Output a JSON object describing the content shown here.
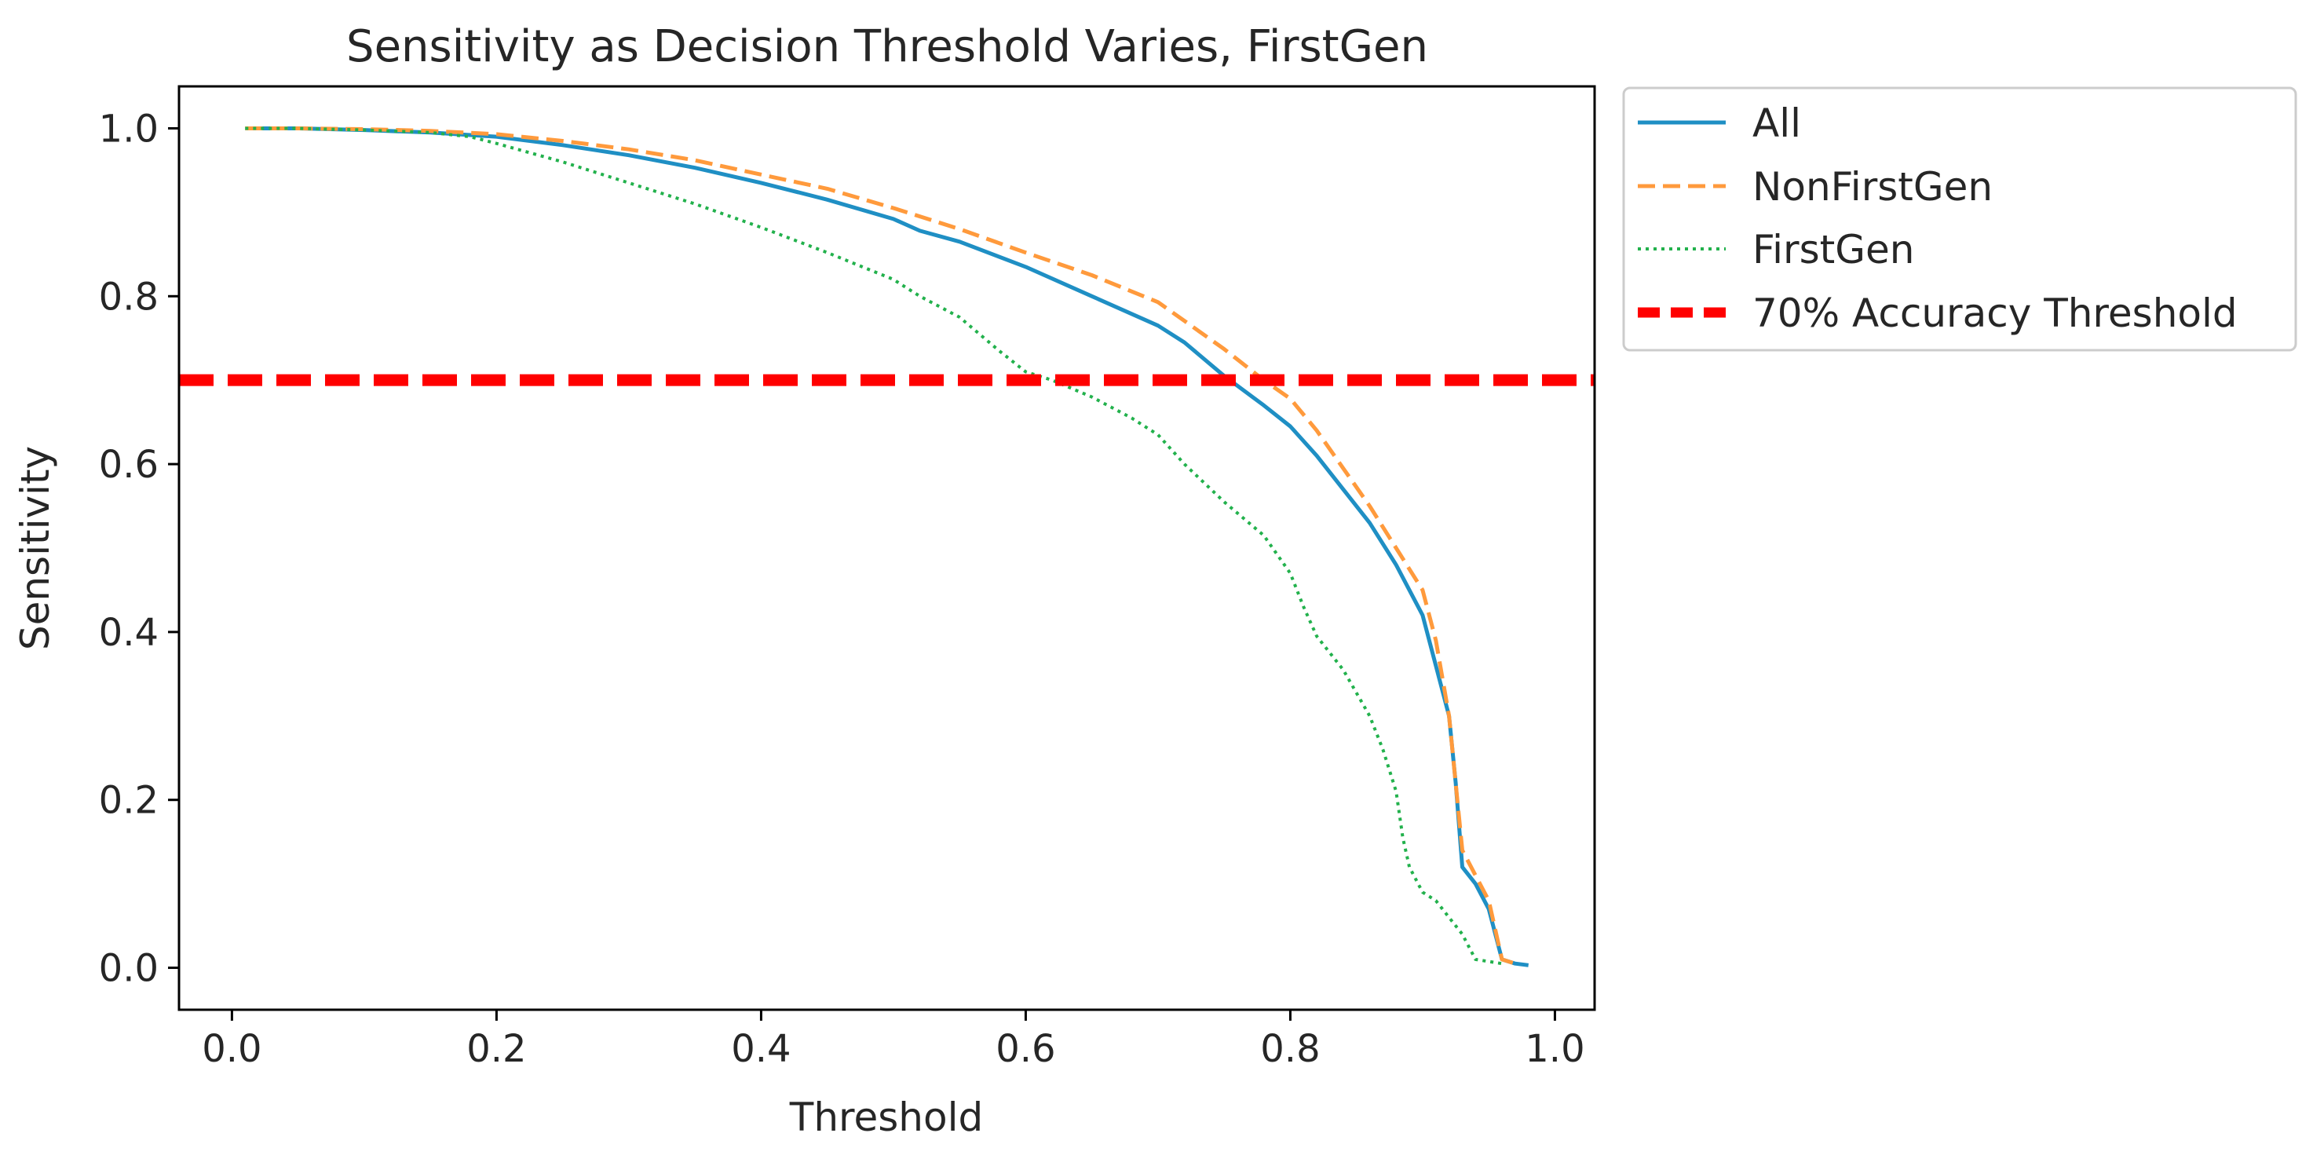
{
  "chart_data": {
    "type": "line",
    "title": "Sensitivity as Decision Threshold Varies, FirstGen",
    "xlabel": "Threshold",
    "ylabel": "Sensitivity",
    "xlim": [
      -0.04,
      1.03
    ],
    "ylim": [
      -0.05,
      1.05
    ],
    "xticks": [
      0.0,
      0.2,
      0.4,
      0.6,
      0.8,
      1.0
    ],
    "xtick_labels": [
      "0.0",
      "0.2",
      "0.4",
      "0.6",
      "0.8",
      "1.0"
    ],
    "yticks": [
      0.0,
      0.2,
      0.4,
      0.6,
      0.8,
      1.0
    ],
    "ytick_labels": [
      "0.0",
      "0.2",
      "0.4",
      "0.6",
      "0.8",
      "1.0"
    ],
    "grid": false,
    "legend_position": "outside-top-right",
    "series": [
      {
        "name": "All",
        "color": "#1f8fc4",
        "style": "solid",
        "x": [
          0.01,
          0.05,
          0.1,
          0.15,
          0.2,
          0.25,
          0.3,
          0.35,
          0.4,
          0.45,
          0.5,
          0.52,
          0.55,
          0.6,
          0.65,
          0.7,
          0.72,
          0.75,
          0.78,
          0.8,
          0.82,
          0.84,
          0.86,
          0.88,
          0.9,
          0.91,
          0.92,
          0.925,
          0.93,
          0.94,
          0.95,
          0.96,
          0.97,
          0.98
        ],
        "y": [
          1.0,
          1.0,
          0.998,
          0.995,
          0.99,
          0.98,
          0.968,
          0.953,
          0.935,
          0.915,
          0.892,
          0.878,
          0.865,
          0.835,
          0.8,
          0.765,
          0.745,
          0.705,
          0.67,
          0.645,
          0.61,
          0.57,
          0.53,
          0.48,
          0.42,
          0.36,
          0.3,
          0.22,
          0.12,
          0.1,
          0.07,
          0.01,
          0.005,
          0.003
        ]
      },
      {
        "name": "NonFirstGen",
        "color": "#ff9a3c",
        "style": "dashed",
        "x": [
          0.01,
          0.05,
          0.1,
          0.15,
          0.2,
          0.25,
          0.3,
          0.35,
          0.4,
          0.45,
          0.5,
          0.55,
          0.6,
          0.65,
          0.7,
          0.75,
          0.78,
          0.8,
          0.82,
          0.84,
          0.86,
          0.88,
          0.9,
          0.91,
          0.92,
          0.93,
          0.94,
          0.95,
          0.96,
          0.97
        ],
        "y": [
          1.0,
          1.0,
          0.999,
          0.997,
          0.993,
          0.985,
          0.975,
          0.962,
          0.945,
          0.928,
          0.905,
          0.88,
          0.852,
          0.825,
          0.793,
          0.737,
          0.7,
          0.678,
          0.64,
          0.595,
          0.55,
          0.5,
          0.45,
          0.39,
          0.3,
          0.14,
          0.11,
          0.08,
          0.01,
          0.005
        ]
      },
      {
        "name": "FirstGen",
        "color": "#22b14c",
        "style": "dotted",
        "x": [
          0.01,
          0.05,
          0.1,
          0.15,
          0.18,
          0.2,
          0.25,
          0.3,
          0.35,
          0.4,
          0.45,
          0.5,
          0.52,
          0.55,
          0.58,
          0.6,
          0.62,
          0.65,
          0.68,
          0.7,
          0.72,
          0.75,
          0.78,
          0.8,
          0.81,
          0.82,
          0.84,
          0.86,
          0.87,
          0.88,
          0.885,
          0.89,
          0.9,
          0.91,
          0.92,
          0.93,
          0.94,
          0.96
        ],
        "y": [
          1.0,
          1.0,
          0.998,
          0.995,
          0.99,
          0.982,
          0.96,
          0.935,
          0.91,
          0.882,
          0.852,
          0.82,
          0.8,
          0.775,
          0.735,
          0.71,
          0.7,
          0.68,
          0.655,
          0.635,
          0.6,
          0.555,
          0.515,
          0.47,
          0.43,
          0.395,
          0.355,
          0.3,
          0.26,
          0.21,
          0.155,
          0.12,
          0.09,
          0.08,
          0.06,
          0.04,
          0.01,
          0.005
        ]
      },
      {
        "name": "70% Accuracy Threshold",
        "color": "#ff0000",
        "style": "bold-dashed",
        "hline": 0.7
      }
    ]
  }
}
